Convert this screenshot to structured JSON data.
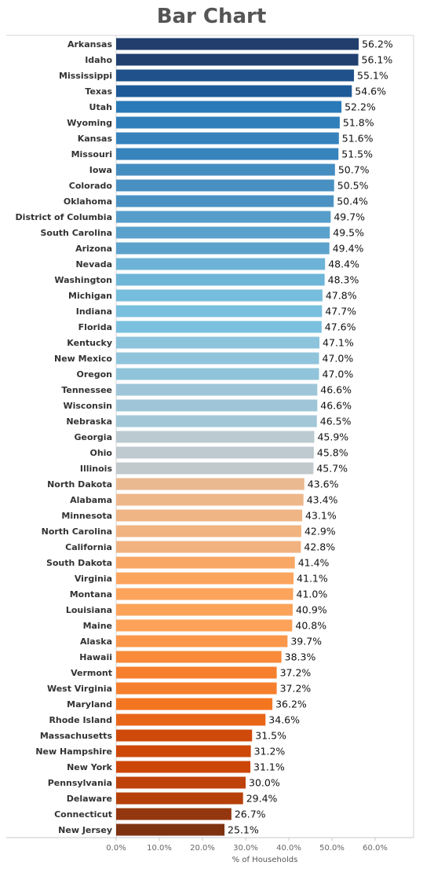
{
  "chart_data": {
    "type": "bar",
    "orientation": "horizontal",
    "title": "Bar Chart",
    "xlabel": "% of Households",
    "ylabel": "",
    "xlim": [
      0,
      68
    ],
    "xticks": [
      0,
      10,
      20,
      30,
      40,
      50,
      60
    ],
    "xtick_labels": [
      "0.0%",
      "10.0%",
      "20.0%",
      "30.0%",
      "40.0%",
      "50.0%",
      "60.0%"
    ],
    "value_suffix": "%",
    "grid": false,
    "legend": "none",
    "categories": [
      "Arkansas",
      "Idaho",
      "Mississippi",
      "Texas",
      "Utah",
      "Wyoming",
      "Kansas",
      "Missouri",
      "Iowa",
      "Colorado",
      "Oklahoma",
      "District of Columbia",
      "South Carolina",
      "Arizona",
      "Nevada",
      "Washington",
      "Michigan",
      "Indiana",
      "Florida",
      "Kentucky",
      "New Mexico",
      "Oregon",
      "Tennessee",
      "Wisconsin",
      "Nebraska",
      "Georgia",
      "Ohio",
      "Illinois",
      "North Dakota",
      "Alabama",
      "Minnesota",
      "North Carolina",
      "California",
      "South Dakota",
      "Virginia",
      "Montana",
      "Louisiana",
      "Maine",
      "Alaska",
      "Hawaii",
      "Vermont",
      "West Virginia",
      "Maryland",
      "Rhode Island",
      "Massachusetts",
      "New Hampshire",
      "New York",
      "Pennsylvania",
      "Delaware",
      "Connecticut",
      "New Jersey"
    ],
    "values": [
      56.2,
      56.1,
      55.1,
      54.6,
      52.2,
      51.8,
      51.6,
      51.5,
      50.7,
      50.5,
      50.4,
      49.7,
      49.5,
      49.4,
      48.4,
      48.3,
      47.8,
      47.7,
      47.6,
      47.1,
      47.0,
      47.0,
      46.6,
      46.6,
      46.5,
      45.9,
      45.8,
      45.7,
      43.6,
      43.4,
      43.1,
      42.9,
      42.8,
      41.4,
      41.1,
      41.0,
      40.9,
      40.8,
      39.7,
      38.3,
      37.2,
      37.2,
      36.2,
      34.6,
      31.5,
      31.2,
      31.1,
      30.0,
      29.4,
      26.7,
      25.1
    ],
    "value_labels": [
      "56.2%",
      "56.1%",
      "55.1%",
      "54.6%",
      "52.2%",
      "51.8%",
      "51.6%",
      "51.5%",
      "50.7%",
      "50.5%",
      "50.4%",
      "49.7%",
      "49.5%",
      "49.4%",
      "48.4%",
      "48.3%",
      "47.8%",
      "47.7%",
      "47.6%",
      "47.1%",
      "47.0%",
      "47.0%",
      "46.6%",
      "46.6%",
      "46.5%",
      "45.9%",
      "45.8%",
      "45.7%",
      "43.6%",
      "43.4%",
      "43.1%",
      "42.9%",
      "42.8%",
      "41.4%",
      "41.1%",
      "41.0%",
      "40.9%",
      "40.8%",
      "39.7%",
      "38.3%",
      "37.2%",
      "37.2%",
      "36.2%",
      "34.6%",
      "31.5%",
      "31.2%",
      "31.1%",
      "30.0%",
      "29.4%",
      "26.7%",
      "25.1%"
    ],
    "color_scale": "diverging blue (high) to orange (low)",
    "color_stops": [
      {
        "value": 25.1,
        "color": "#7f3210"
      },
      {
        "value": 31.0,
        "color": "#cb4508"
      },
      {
        "value": 36.0,
        "color": "#f4731e"
      },
      {
        "value": 40.8,
        "color": "#fda258"
      },
      {
        "value": 43.5,
        "color": "#edb88c"
      },
      {
        "value": 45.8,
        "color": "#bfcad0"
      },
      {
        "value": 47.5,
        "color": "#7cc2e0"
      },
      {
        "value": 50.5,
        "color": "#4990c2"
      },
      {
        "value": 52.2,
        "color": "#2a7ab8"
      },
      {
        "value": 54.6,
        "color": "#1f5a98"
      },
      {
        "value": 56.2,
        "color": "#213e6c"
      }
    ]
  }
}
